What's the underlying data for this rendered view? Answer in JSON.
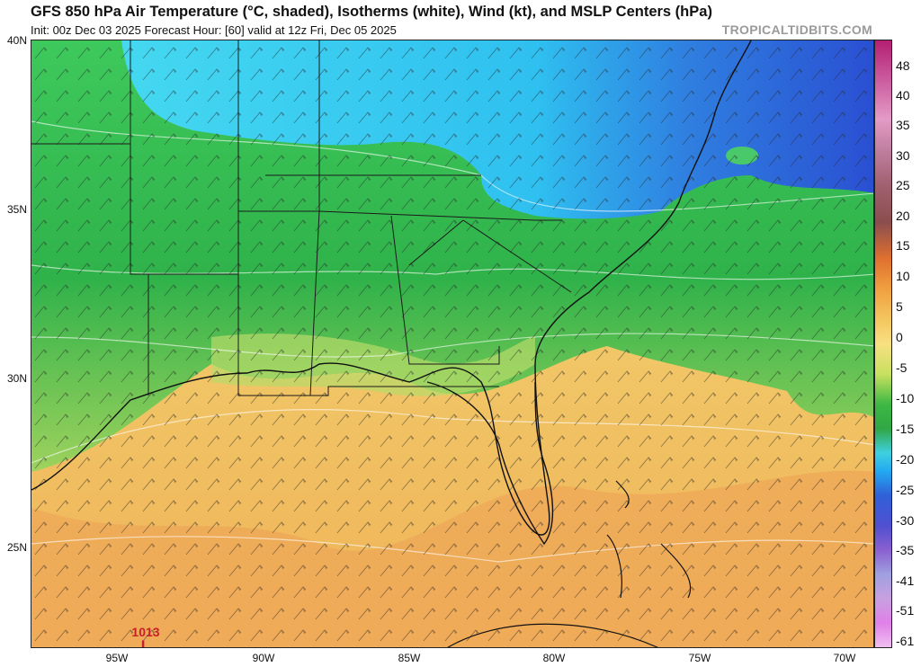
{
  "header": {
    "title": "GFS 850 hPa Air Temperature (°C, shaded), Isotherms (white), Wind (kt), and MSLP Centers (hPa)",
    "subtitle": "Init: 00z Dec 03 2025    Forecast Hour: [60]    valid at 12z Fri, Dec 05 2025",
    "credit": "TROPICALTIDBITS.COM"
  },
  "latitude_labels": [
    "40N",
    "35N",
    "30N",
    "25N"
  ],
  "longitude_labels": [
    "95W",
    "90W",
    "85W",
    "80W",
    "75W",
    "70W"
  ],
  "colorbar_labels": [
    "48",
    "40",
    "35",
    "30",
    "25",
    "20",
    "15",
    "10",
    "5",
    "0",
    "-5",
    "-10",
    "-15",
    "-20",
    "-25",
    "-30",
    "-35",
    "-41",
    "-51",
    "-61"
  ],
  "pressure_center": {
    "value": "1013",
    "type": "L",
    "color": "#c8202a"
  },
  "colors": {
    "cold_cyan": "#3fd3f0",
    "cold_blue": "#2d7fe0",
    "deep_blue": "#2f55d8",
    "green": "#33b24a",
    "light_green": "#7ccc5a",
    "yellow": "#e9d86a",
    "orange": "#f0b35c",
    "dark_orange": "#eaa24f"
  }
}
